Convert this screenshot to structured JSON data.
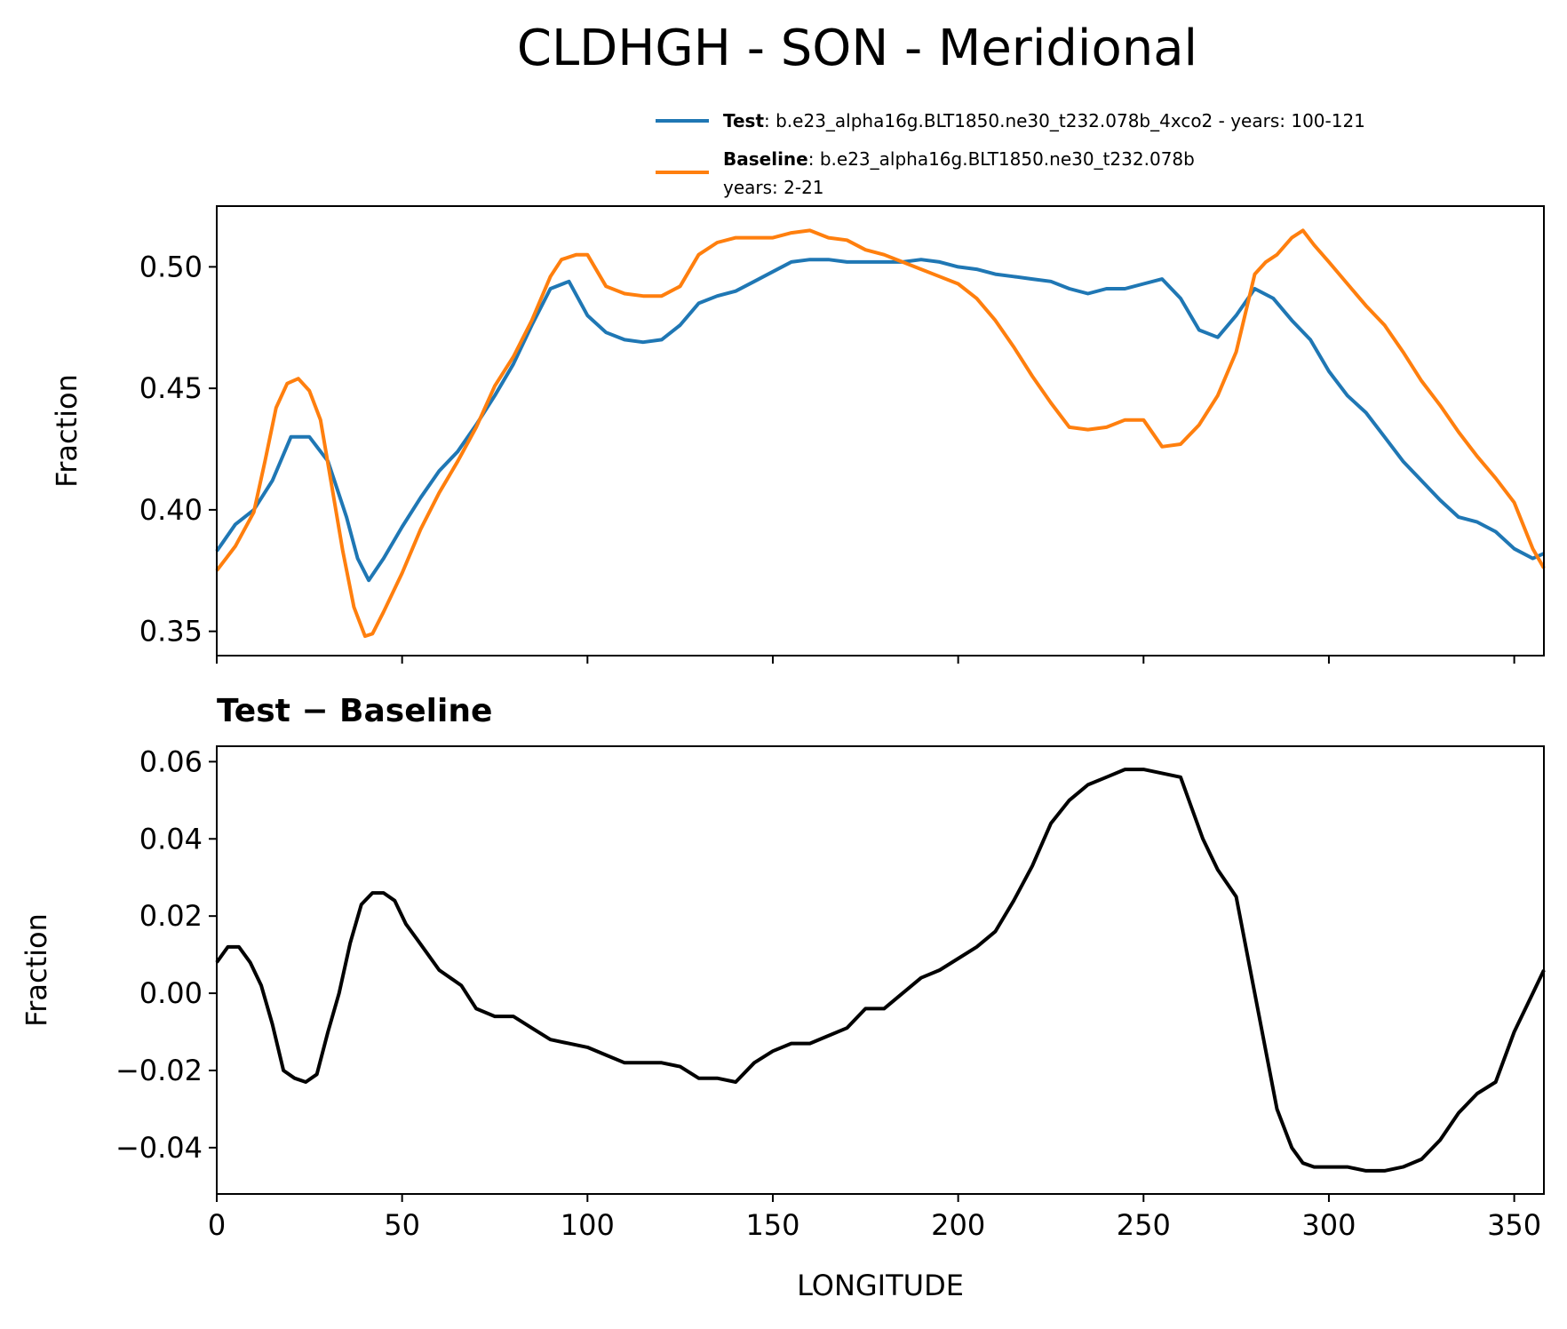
{
  "title": "CLDHGH - SON - Meridional",
  "legend": {
    "test_bold": "Test",
    "test_text": ": b.e23_alpha16g.BLT1850.ne30_t232.078b_4xco2 - years: 100-121",
    "baseline_bold": "Baseline",
    "baseline_text": ": b.e23_alpha16g.BLT1850.ne30_t232.078b",
    "baseline_text2": "years: 2-21"
  },
  "diff_title": "Test − Baseline",
  "colors": {
    "test": "#1f77b4",
    "baseline": "#ff7f0e",
    "diff": "#000000"
  },
  "chart_data": [
    {
      "type": "line",
      "ylabel": "Fraction",
      "xlim": [
        0,
        358
      ],
      "ylim": [
        0.34,
        0.525
      ],
      "xticks": [
        0,
        50,
        100,
        150,
        200,
        250,
        300,
        350
      ],
      "yticks": [
        0.35,
        0.4,
        0.45,
        0.5
      ],
      "ytick_labels": [
        "0.35",
        "0.40",
        "0.45",
        "0.50"
      ],
      "legend_position": "top-right (above plot)",
      "series": [
        {
          "name": "Test",
          "color": "#1f77b4",
          "x": [
            0,
            5,
            10,
            15,
            20,
            25,
            30,
            35,
            38,
            41,
            45,
            50,
            55,
            60,
            65,
            70,
            75,
            80,
            85,
            90,
            95,
            100,
            105,
            110,
            115,
            120,
            125,
            130,
            135,
            140,
            145,
            150,
            155,
            160,
            165,
            170,
            175,
            180,
            185,
            190,
            195,
            200,
            205,
            210,
            215,
            220,
            225,
            230,
            235,
            240,
            245,
            250,
            255,
            260,
            265,
            270,
            275,
            280,
            285,
            290,
            295,
            300,
            305,
            310,
            315,
            320,
            325,
            330,
            335,
            340,
            345,
            350,
            355,
            358
          ],
          "y": [
            0.383,
            0.394,
            0.4,
            0.412,
            0.43,
            0.43,
            0.42,
            0.397,
            0.38,
            0.371,
            0.38,
            0.393,
            0.405,
            0.416,
            0.424,
            0.435,
            0.447,
            0.46,
            0.476,
            0.491,
            0.494,
            0.48,
            0.473,
            0.47,
            0.469,
            0.47,
            0.476,
            0.485,
            0.488,
            0.49,
            0.494,
            0.498,
            0.502,
            0.503,
            0.503,
            0.502,
            0.502,
            0.502,
            0.502,
            0.503,
            0.502,
            0.5,
            0.499,
            0.497,
            0.496,
            0.495,
            0.494,
            0.491,
            0.489,
            0.491,
            0.491,
            0.493,
            0.495,
            0.487,
            0.474,
            0.471,
            0.48,
            0.491,
            0.487,
            0.478,
            0.47,
            0.457,
            0.447,
            0.44,
            0.43,
            0.42,
            0.412,
            0.404,
            0.397,
            0.395,
            0.391,
            0.384,
            0.38,
            0.382
          ]
        },
        {
          "name": "Baseline",
          "color": "#ff7f0e",
          "x": [
            0,
            5,
            10,
            13,
            16,
            19,
            22,
            25,
            28,
            31,
            34,
            37,
            40,
            42,
            45,
            50,
            55,
            60,
            65,
            70,
            75,
            80,
            85,
            90,
            93,
            97,
            100,
            105,
            110,
            115,
            120,
            125,
            130,
            135,
            140,
            145,
            150,
            155,
            160,
            165,
            170,
            175,
            180,
            185,
            190,
            195,
            200,
            205,
            210,
            215,
            220,
            225,
            230,
            235,
            240,
            245,
            250,
            255,
            260,
            265,
            270,
            275,
            280,
            283,
            286,
            290,
            293,
            296,
            300,
            305,
            310,
            315,
            320,
            325,
            330,
            335,
            340,
            345,
            350,
            355,
            358
          ],
          "y": [
            0.375,
            0.385,
            0.399,
            0.42,
            0.442,
            0.452,
            0.454,
            0.449,
            0.437,
            0.41,
            0.383,
            0.36,
            0.348,
            0.349,
            0.358,
            0.374,
            0.392,
            0.407,
            0.42,
            0.434,
            0.451,
            0.463,
            0.478,
            0.496,
            0.503,
            0.505,
            0.505,
            0.492,
            0.489,
            0.488,
            0.488,
            0.492,
            0.505,
            0.51,
            0.512,
            0.512,
            0.512,
            0.514,
            0.515,
            0.512,
            0.511,
            0.507,
            0.505,
            0.502,
            0.499,
            0.496,
            0.493,
            0.487,
            0.478,
            0.467,
            0.455,
            0.444,
            0.434,
            0.433,
            0.434,
            0.437,
            0.437,
            0.426,
            0.427,
            0.435,
            0.447,
            0.465,
            0.497,
            0.502,
            0.505,
            0.512,
            0.515,
            0.509,
            0.502,
            0.493,
            0.484,
            0.476,
            0.465,
            0.453,
            0.443,
            0.432,
            0.422,
            0.413,
            0.403,
            0.384,
            0.376
          ]
        }
      ]
    },
    {
      "type": "line",
      "title": "Test − Baseline",
      "xlabel": "LONGITUDE",
      "ylabel": "Fraction",
      "xlim": [
        0,
        358
      ],
      "ylim": [
        -0.052,
        0.064
      ],
      "xticks": [
        0,
        50,
        100,
        150,
        200,
        250,
        300,
        350
      ],
      "yticks": [
        -0.04,
        -0.02,
        0.0,
        0.02,
        0.04,
        0.06
      ],
      "ytick_labels": [
        "−0.04",
        "−0.02",
        "0.00",
        "0.02",
        "0.04",
        "0.06"
      ],
      "series": [
        {
          "color": "#000000",
          "x": [
            0,
            3,
            6,
            9,
            12,
            15,
            18,
            21,
            24,
            27,
            30,
            33,
            36,
            39,
            42,
            45,
            48,
            51,
            54,
            57,
            60,
            63,
            66,
            70,
            75,
            80,
            85,
            90,
            95,
            100,
            105,
            110,
            115,
            120,
            125,
            130,
            135,
            140,
            145,
            150,
            155,
            160,
            165,
            170,
            175,
            180,
            185,
            190,
            195,
            200,
            205,
            210,
            215,
            220,
            225,
            230,
            235,
            240,
            245,
            250,
            255,
            260,
            263,
            266,
            270,
            275,
            280,
            283,
            286,
            290,
            293,
            296,
            300,
            305,
            310,
            315,
            320,
            325,
            330,
            335,
            340,
            345,
            350,
            355,
            358
          ],
          "y": [
            0.008,
            0.012,
            0.012,
            0.008,
            0.002,
            -0.008,
            -0.02,
            -0.022,
            -0.023,
            -0.021,
            -0.01,
            0.0,
            0.013,
            0.023,
            0.026,
            0.026,
            0.024,
            0.018,
            0.014,
            0.01,
            0.006,
            0.004,
            0.002,
            -0.004,
            -0.006,
            -0.006,
            -0.009,
            -0.012,
            -0.013,
            -0.014,
            -0.016,
            -0.018,
            -0.018,
            -0.018,
            -0.019,
            -0.022,
            -0.022,
            -0.023,
            -0.018,
            -0.015,
            -0.013,
            -0.013,
            -0.011,
            -0.009,
            -0.004,
            -0.004,
            0.0,
            0.004,
            0.006,
            0.009,
            0.012,
            0.016,
            0.024,
            0.033,
            0.044,
            0.05,
            0.054,
            0.056,
            0.058,
            0.058,
            0.057,
            0.056,
            0.048,
            0.04,
            0.032,
            0.025,
            0.0,
            -0.015,
            -0.03,
            -0.04,
            -0.044,
            -0.045,
            -0.045,
            -0.045,
            -0.046,
            -0.046,
            -0.045,
            -0.043,
            -0.038,
            -0.031,
            -0.026,
            -0.023,
            -0.01,
            0.0,
            0.006
          ]
        }
      ]
    }
  ]
}
